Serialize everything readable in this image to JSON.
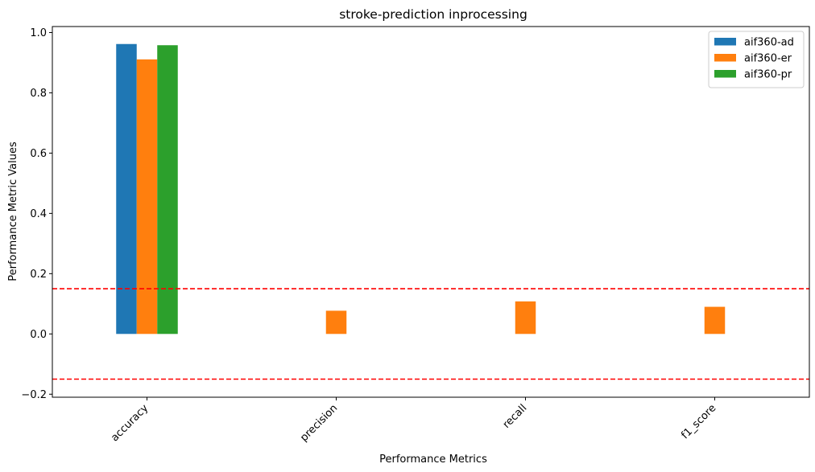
{
  "chart_data": {
    "type": "bar",
    "title": "stroke-prediction inprocessing",
    "xlabel": "Performance Metrics",
    "ylabel": "Performance Metric Values",
    "categories": [
      "accuracy",
      "precision",
      "recall",
      "f1_score"
    ],
    "series": [
      {
        "name": "aif360-ad",
        "color": "#1f77b4",
        "values": [
          0.962,
          0.0,
          0.0,
          0.0
        ]
      },
      {
        "name": "aif360-er",
        "color": "#ff7f0e",
        "values": [
          0.911,
          0.077,
          0.108,
          0.09
        ]
      },
      {
        "name": "aif360-pr",
        "color": "#2ca02c",
        "values": [
          0.958,
          0.0,
          0.0,
          0.0
        ]
      }
    ],
    "ylim": [
      -0.21,
      1.02
    ],
    "yticks": [
      -0.2,
      0.0,
      0.2,
      0.4,
      0.6,
      0.8,
      1.0
    ],
    "ytick_labels": [
      "−0.2",
      "0.0",
      "0.2",
      "0.4",
      "0.6",
      "0.8",
      "1.0"
    ],
    "reference_lines": [
      {
        "y": 0.15,
        "color": "#ff0000",
        "style": "dashed"
      },
      {
        "y": -0.15,
        "color": "#ff0000",
        "style": "dashed"
      }
    ],
    "grid": false,
    "legend_position": "top-right"
  }
}
